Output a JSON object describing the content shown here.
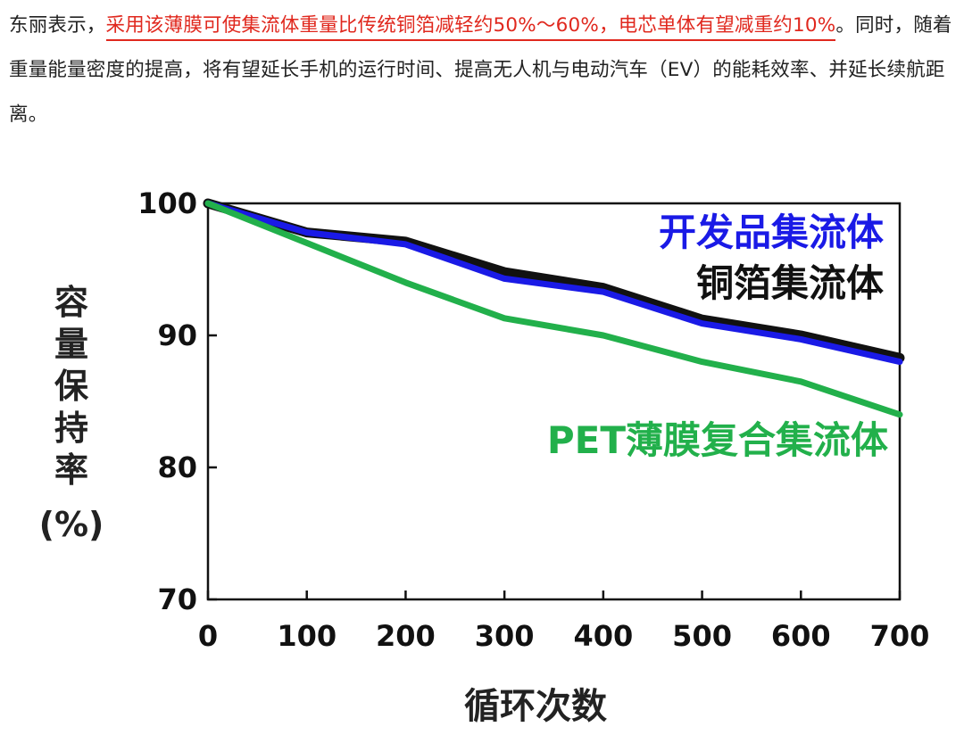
{
  "article": {
    "text_before": "东丽表示，",
    "highlight": "采用该薄膜可使集流体重量比传统铜箔减轻约50%～60%，电芯单体有望减重约10%",
    "text_after": "。同时，随着重量能量密度的提高，将有望延长手机的运行时间、提高无人机与电动汽车（EV）的能耗效率、并延长续航距离。"
  },
  "chart_data": {
    "type": "line",
    "xlabel": "循环次数",
    "ylabel": "容量保持率(%)",
    "ylabel_chars": [
      "容",
      "量",
      "保",
      "持",
      "率",
      "(%)"
    ],
    "xlim": [
      0,
      700
    ],
    "ylim": [
      70,
      100
    ],
    "xticks": [
      0,
      100,
      200,
      300,
      400,
      500,
      600,
      700
    ],
    "yticks": [
      70,
      80,
      90,
      100
    ],
    "grid": false,
    "series": [
      {
        "name": "铜箔集流体",
        "color": "#111111",
        "x": [
          0,
          100,
          200,
          300,
          400,
          500,
          600,
          700
        ],
        "y": [
          100,
          97.8,
          97.1,
          94.8,
          93.6,
          91.2,
          90.0,
          88.3
        ]
      },
      {
        "name": "开发品集流体",
        "color": "#1a1ae6",
        "x": [
          0,
          100,
          200,
          300,
          400,
          500,
          600,
          700
        ],
        "y": [
          100,
          97.8,
          96.9,
          94.3,
          93.3,
          90.9,
          89.7,
          88.0
        ]
      },
      {
        "name": "PET薄膜复合集流体",
        "color": "#22b04b",
        "x": [
          0,
          100,
          200,
          300,
          400,
          500,
          600,
          700
        ],
        "y": [
          100,
          97.0,
          94.0,
          91.3,
          90.0,
          88.0,
          86.5,
          84.0
        ]
      }
    ],
    "legend": [
      {
        "parts": [
          {
            "text": "开发品集流体",
            "color": "#1a1ae6"
          }
        ]
      },
      {
        "parts": [
          {
            "text": "铜箔集流体",
            "color": "#111111"
          }
        ]
      },
      {
        "parts": [
          {
            "text": "PET薄膜复合集流体",
            "color": "#22b04b"
          }
        ]
      }
    ]
  }
}
